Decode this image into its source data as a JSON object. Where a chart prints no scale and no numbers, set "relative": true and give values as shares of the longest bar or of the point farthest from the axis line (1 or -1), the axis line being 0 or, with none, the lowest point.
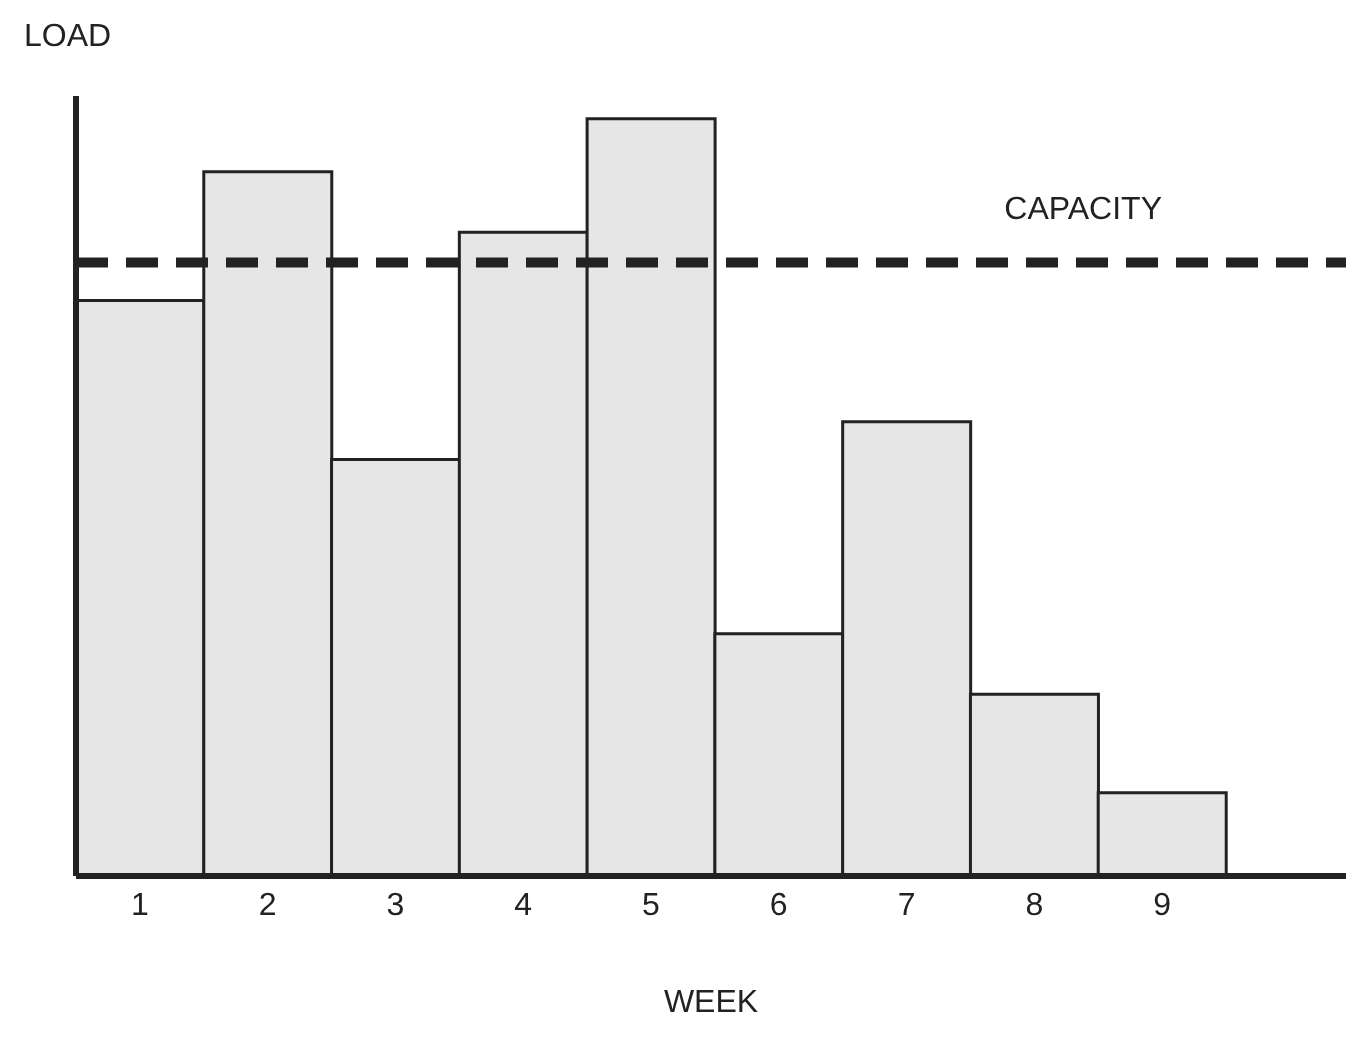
{
  "chart_data": {
    "type": "bar",
    "xlabel": "WEEK",
    "ylabel": "LOAD",
    "relative": true,
    "categories": [
      "1",
      "2",
      "3",
      "4",
      "5",
      "6",
      "7",
      "8",
      "9"
    ],
    "values": [
      0.76,
      0.93,
      0.55,
      0.85,
      1,
      0.32,
      0.6,
      0.24,
      0.11
    ],
    "color": "#e6e6e6",
    "ref_lines": [
      {
        "axis": "y",
        "value": 0.81,
        "label": "CAPACITY",
        "line_style": "dashed",
        "color": "#222222"
      }
    ]
  }
}
